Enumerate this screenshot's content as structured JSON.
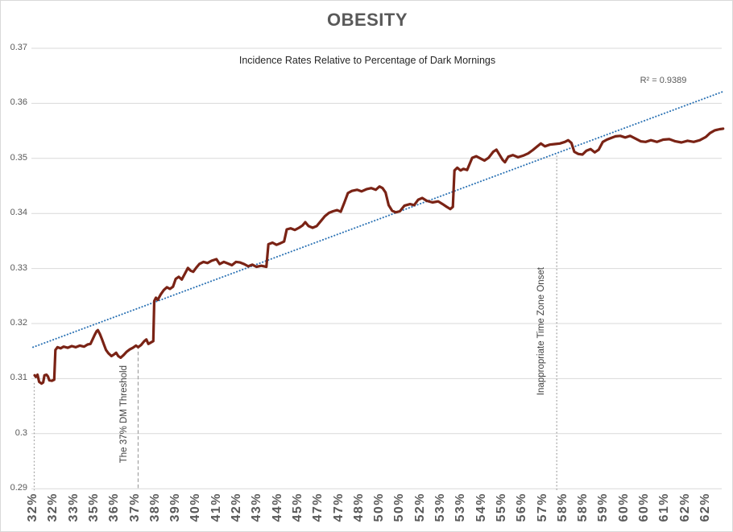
{
  "chart_data": {
    "type": "line",
    "title": "OBESITY",
    "subtitle": "Incidence Rates Relative to Percentage of Dark Mornings",
    "grid": "horizontal",
    "ylim": [
      0.29,
      0.37
    ],
    "y_ticks": [
      0.37,
      0.36,
      0.35,
      0.34,
      0.33,
      0.32,
      0.31,
      0.3,
      0.29
    ],
    "y_tick_labels": [
      "0.37",
      "0.36",
      "0.35",
      "0.34",
      "0.33",
      "0.32",
      "0.31",
      "0.3",
      "0.29"
    ],
    "x_tick_labels": [
      "32%",
      "32%",
      "33%",
      "35%",
      "36%",
      "37%",
      "38%",
      "39%",
      "40%",
      "41%",
      "42%",
      "43%",
      "44%",
      "45%",
      "47%",
      "47%",
      "48%",
      "50%",
      "50%",
      "52%",
      "53%",
      "53%",
      "54%",
      "55%",
      "56%",
      "57%",
      "58%",
      "58%",
      "59%",
      "60%",
      "60%",
      "61%",
      "62%",
      "62%"
    ],
    "colors": {
      "series": "#7a2315",
      "trendline": "#2e74b5",
      "gridline": "#d9d9d9",
      "annotation_line": "#a6a6a6",
      "axis_text": "#595959",
      "annotation_text": "#404040"
    },
    "trendline": {
      "r_squared_label": "R² = 0.9389",
      "start": [
        0,
        0.3157
      ],
      "end": [
        33.9,
        0.3622
      ],
      "style": "dotted"
    },
    "annotations": [
      {
        "label": "",
        "x_index": 0.06,
        "top_value": 0.3092,
        "style": "dotted"
      },
      {
        "label": "The 37% DM Threshold",
        "x_index": 5.16,
        "top_value": 0.316,
        "style": "dashed"
      },
      {
        "label": "Inappropriate Time Zone Onset",
        "x_index": 25.7,
        "top_value": 0.3505,
        "style": "dotted"
      }
    ],
    "series": [
      {
        "name": "Incidence rate",
        "points": [
          [
            0.08,
            0.3106
          ],
          [
            0.14,
            0.3103
          ],
          [
            0.22,
            0.3107
          ],
          [
            0.3,
            0.3094
          ],
          [
            0.42,
            0.3091
          ],
          [
            0.5,
            0.3093
          ],
          [
            0.56,
            0.3106
          ],
          [
            0.66,
            0.3107
          ],
          [
            0.73,
            0.3104
          ],
          [
            0.8,
            0.3097
          ],
          [
            0.92,
            0.3096
          ],
          [
            1.04,
            0.3098
          ],
          [
            1.1,
            0.3152
          ],
          [
            1.2,
            0.3157
          ],
          [
            1.35,
            0.3155
          ],
          [
            1.5,
            0.3158
          ],
          [
            1.7,
            0.3156
          ],
          [
            1.9,
            0.3159
          ],
          [
            2.1,
            0.3157
          ],
          [
            2.3,
            0.316
          ],
          [
            2.5,
            0.3158
          ],
          [
            2.68,
            0.3162
          ],
          [
            2.82,
            0.3163
          ],
          [
            2.92,
            0.3171
          ],
          [
            3.02,
            0.3179
          ],
          [
            3.12,
            0.3186
          ],
          [
            3.18,
            0.3188
          ],
          [
            3.28,
            0.3181
          ],
          [
            3.38,
            0.3172
          ],
          [
            3.48,
            0.3162
          ],
          [
            3.58,
            0.3152
          ],
          [
            3.7,
            0.3146
          ],
          [
            3.85,
            0.3141
          ],
          [
            3.98,
            0.3144
          ],
          [
            4.08,
            0.3147
          ],
          [
            4.18,
            0.3141
          ],
          [
            4.3,
            0.3138
          ],
          [
            4.45,
            0.3143
          ],
          [
            4.6,
            0.3149
          ],
          [
            4.75,
            0.3153
          ],
          [
            4.9,
            0.3156
          ],
          [
            5.05,
            0.316
          ],
          [
            5.16,
            0.3157
          ],
          [
            5.3,
            0.3161
          ],
          [
            5.46,
            0.3168
          ],
          [
            5.56,
            0.3171
          ],
          [
            5.66,
            0.3163
          ],
          [
            5.8,
            0.3166
          ],
          [
            5.9,
            0.3168
          ],
          [
            5.95,
            0.3241
          ],
          [
            6.03,
            0.3247
          ],
          [
            6.12,
            0.3243
          ],
          [
            6.27,
            0.3253
          ],
          [
            6.42,
            0.3261
          ],
          [
            6.57,
            0.3266
          ],
          [
            6.72,
            0.3263
          ],
          [
            6.87,
            0.3267
          ],
          [
            7.0,
            0.3281
          ],
          [
            7.15,
            0.3285
          ],
          [
            7.3,
            0.328
          ],
          [
            7.46,
            0.3291
          ],
          [
            7.6,
            0.3301
          ],
          [
            7.73,
            0.3296
          ],
          [
            7.86,
            0.3294
          ],
          [
            8.0,
            0.3301
          ],
          [
            8.16,
            0.3308
          ],
          [
            8.36,
            0.3312
          ],
          [
            8.56,
            0.331
          ],
          [
            8.76,
            0.3314
          ],
          [
            9.0,
            0.3317
          ],
          [
            9.16,
            0.3308
          ],
          [
            9.36,
            0.3312
          ],
          [
            9.56,
            0.3309
          ],
          [
            9.76,
            0.3306
          ],
          [
            9.96,
            0.3312
          ],
          [
            10.16,
            0.3311
          ],
          [
            10.36,
            0.3308
          ],
          [
            10.56,
            0.3304
          ],
          [
            10.76,
            0.3307
          ],
          [
            10.96,
            0.3303
          ],
          [
            11.2,
            0.3305
          ],
          [
            11.45,
            0.3303
          ],
          [
            11.55,
            0.3344
          ],
          [
            11.75,
            0.3347
          ],
          [
            11.95,
            0.3343
          ],
          [
            12.15,
            0.3346
          ],
          [
            12.32,
            0.3349
          ],
          [
            12.45,
            0.3371
          ],
          [
            12.65,
            0.3373
          ],
          [
            12.85,
            0.337
          ],
          [
            13.05,
            0.3374
          ],
          [
            13.22,
            0.3378
          ],
          [
            13.36,
            0.3384
          ],
          [
            13.52,
            0.3377
          ],
          [
            13.72,
            0.3374
          ],
          [
            13.92,
            0.3377
          ],
          [
            14.12,
            0.3386
          ],
          [
            14.32,
            0.3395
          ],
          [
            14.52,
            0.3401
          ],
          [
            14.72,
            0.3404
          ],
          [
            14.92,
            0.3406
          ],
          [
            15.1,
            0.3403
          ],
          [
            15.28,
            0.342
          ],
          [
            15.45,
            0.3437
          ],
          [
            15.65,
            0.3441
          ],
          [
            15.9,
            0.3443
          ],
          [
            16.12,
            0.344
          ],
          [
            16.36,
            0.3444
          ],
          [
            16.6,
            0.3446
          ],
          [
            16.82,
            0.3443
          ],
          [
            17.0,
            0.3449
          ],
          [
            17.15,
            0.3446
          ],
          [
            17.3,
            0.3438
          ],
          [
            17.45,
            0.3415
          ],
          [
            17.62,
            0.3405
          ],
          [
            17.8,
            0.3402
          ],
          [
            18.0,
            0.3404
          ],
          [
            18.22,
            0.3414
          ],
          [
            18.5,
            0.3417
          ],
          [
            18.7,
            0.3415
          ],
          [
            18.9,
            0.3425
          ],
          [
            19.1,
            0.3428
          ],
          [
            19.32,
            0.3423
          ],
          [
            19.6,
            0.342
          ],
          [
            19.88,
            0.3422
          ],
          [
            20.1,
            0.3417
          ],
          [
            20.3,
            0.3412
          ],
          [
            20.48,
            0.3408
          ],
          [
            20.6,
            0.3412
          ],
          [
            20.68,
            0.3478
          ],
          [
            20.82,
            0.3483
          ],
          [
            20.98,
            0.3478
          ],
          [
            21.12,
            0.3481
          ],
          [
            21.3,
            0.3479
          ],
          [
            21.55,
            0.3501
          ],
          [
            21.75,
            0.3504
          ],
          [
            21.95,
            0.35
          ],
          [
            22.15,
            0.3496
          ],
          [
            22.35,
            0.3501
          ],
          [
            22.58,
            0.3512
          ],
          [
            22.74,
            0.3516
          ],
          [
            22.9,
            0.3506
          ],
          [
            23.05,
            0.3497
          ],
          [
            23.16,
            0.3493
          ],
          [
            23.32,
            0.3503
          ],
          [
            23.55,
            0.3506
          ],
          [
            23.8,
            0.3502
          ],
          [
            24.05,
            0.3505
          ],
          [
            24.3,
            0.3509
          ],
          [
            24.52,
            0.3515
          ],
          [
            24.72,
            0.3521
          ],
          [
            24.92,
            0.3527
          ],
          [
            25.12,
            0.3522
          ],
          [
            25.36,
            0.3525
          ],
          [
            25.6,
            0.3526
          ],
          [
            25.85,
            0.3527
          ],
          [
            26.1,
            0.353
          ],
          [
            26.26,
            0.3533
          ],
          [
            26.42,
            0.3528
          ],
          [
            26.56,
            0.3512
          ],
          [
            26.76,
            0.3508
          ],
          [
            26.96,
            0.3507
          ],
          [
            27.16,
            0.3514
          ],
          [
            27.36,
            0.3517
          ],
          [
            27.56,
            0.3511
          ],
          [
            27.76,
            0.3516
          ],
          [
            27.96,
            0.353
          ],
          [
            28.16,
            0.3534
          ],
          [
            28.36,
            0.3537
          ],
          [
            28.58,
            0.354
          ],
          [
            28.82,
            0.3541
          ],
          [
            29.06,
            0.3538
          ],
          [
            29.3,
            0.3541
          ],
          [
            29.56,
            0.3536
          ],
          [
            29.82,
            0.3531
          ],
          [
            30.06,
            0.353
          ],
          [
            30.32,
            0.3533
          ],
          [
            30.62,
            0.353
          ],
          [
            30.92,
            0.3534
          ],
          [
            31.22,
            0.3535
          ],
          [
            31.52,
            0.3531
          ],
          [
            31.82,
            0.3529
          ],
          [
            32.12,
            0.3532
          ],
          [
            32.42,
            0.353
          ],
          [
            32.72,
            0.3533
          ],
          [
            33.02,
            0.3539
          ],
          [
            33.22,
            0.3546
          ],
          [
            33.46,
            0.3551
          ],
          [
            33.7,
            0.3553
          ],
          [
            33.86,
            0.3554
          ]
        ]
      }
    ]
  }
}
